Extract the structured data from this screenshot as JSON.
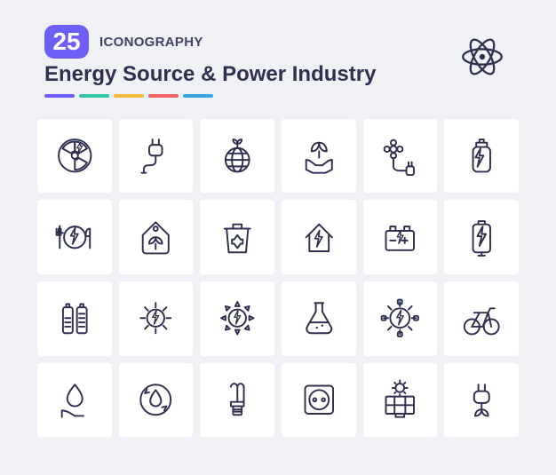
{
  "header": {
    "badge_number": "25",
    "badge_label": "ICONOGRAPHY",
    "title": "Energy Source & Power Industry",
    "underline_colors": [
      "#6d5ff6",
      "#34c7a5",
      "#f6b93b",
      "#f06268",
      "#3aa6e0"
    ],
    "badge_bg": "#6d5ff6"
  },
  "layout": {
    "page_bg": "#f0f1f4",
    "cell_bg": "#ffffff",
    "stroke": "#2d3150",
    "grid_cols": 6,
    "grid_rows": 5
  },
  "feature_icon": "atom-icon",
  "icons": [
    "radiation-hazard-icon",
    "plug-cable-icon",
    "eco-globe-icon",
    "hands-leaf-icon",
    "flower-plug-icon",
    "gas-cylinder-icon",
    "energy-meal-icon",
    "eco-tag-icon",
    "recycle-bin-icon",
    "power-house-icon",
    "car-battery-icon",
    "battery-charging-icon",
    "battery-levels-icon",
    "sun-bolt-icon",
    "sun-power-icon",
    "chemistry-flask-icon",
    "power-gear-icon",
    "bicycle-icon",
    "hand-drop-icon",
    "water-cycle-icon",
    "cfl-bulb-icon",
    "socket-outlet-icon",
    "solar-panel-icon",
    "eco-plug-icon"
  ]
}
